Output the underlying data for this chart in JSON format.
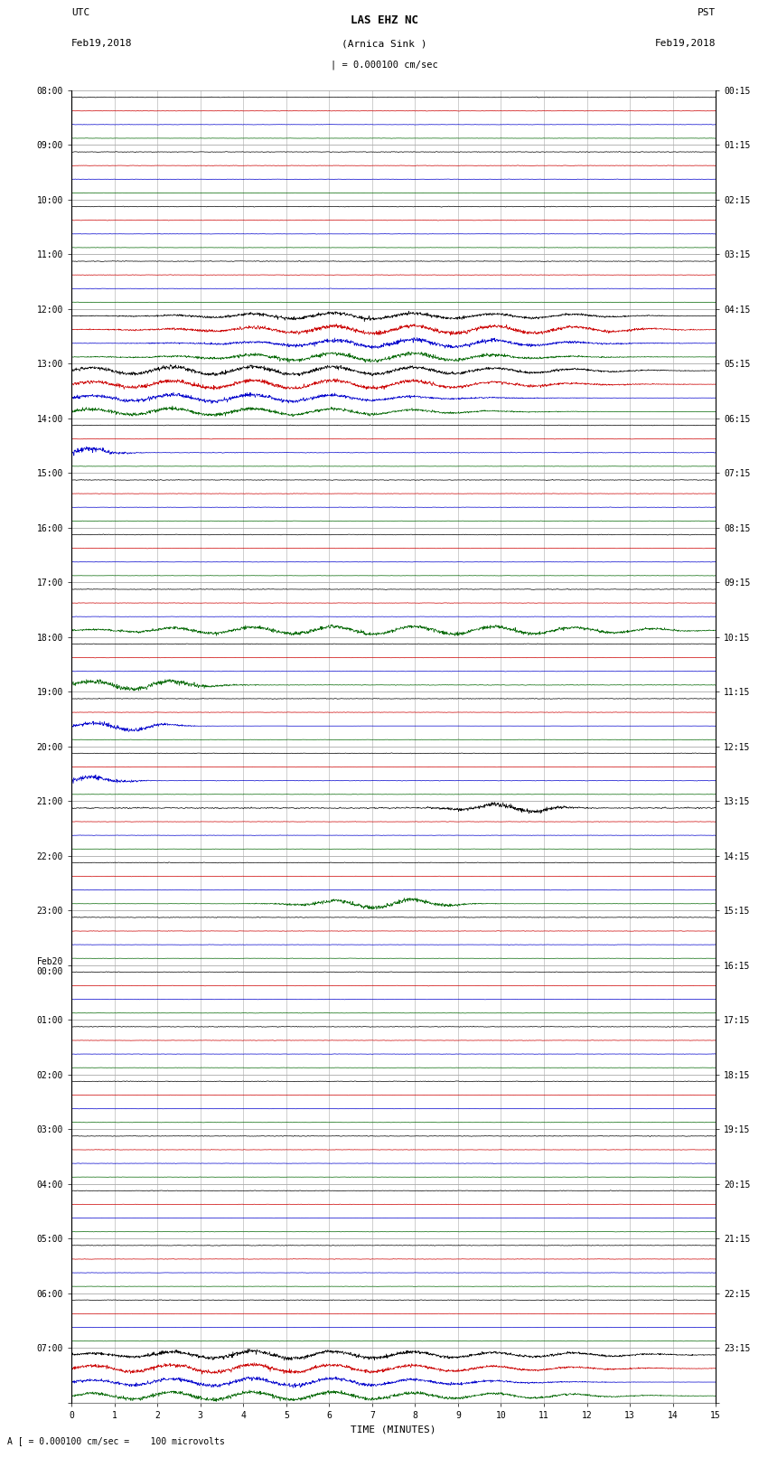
{
  "title_line1": "LAS EHZ NC",
  "title_line2": "(Arnica Sink )",
  "scale_label": "| = 0.000100 cm/sec",
  "footer_label": "A [ = 0.000100 cm/sec =    100 microvolts",
  "left_label_top": "UTC",
  "left_label_date": "Feb19,2018",
  "right_label_top": "PST",
  "right_label_date": "Feb19,2018",
  "xlabel": "TIME (MINUTES)",
  "fig_width": 8.5,
  "fig_height": 16.13,
  "bg_color": "#ffffff",
  "grid_color": "#aaaaaa",
  "colors": {
    "black": "#000000",
    "red": "#cc0000",
    "blue": "#0000cc",
    "green": "#006600"
  },
  "utc_labels": [
    "08:00",
    "09:00",
    "10:00",
    "11:00",
    "12:00",
    "13:00",
    "14:00",
    "15:00",
    "16:00",
    "17:00",
    "18:00",
    "19:00",
    "20:00",
    "21:00",
    "22:00",
    "23:00",
    "Feb20\n00:00",
    "01:00",
    "02:00",
    "03:00",
    "04:00",
    "05:00",
    "06:00",
    "07:00"
  ],
  "pst_labels": [
    "00:15",
    "01:15",
    "02:15",
    "03:15",
    "04:15",
    "05:15",
    "06:15",
    "07:15",
    "08:15",
    "09:15",
    "10:15",
    "11:15",
    "12:15",
    "13:15",
    "14:15",
    "15:15",
    "16:15",
    "17:15",
    "18:15",
    "19:15",
    "20:15",
    "21:15",
    "22:15",
    "23:15"
  ],
  "num_hours": 24,
  "traces_per_hour": 4,
  "color_order": [
    "black",
    "red",
    "blue",
    "green"
  ]
}
